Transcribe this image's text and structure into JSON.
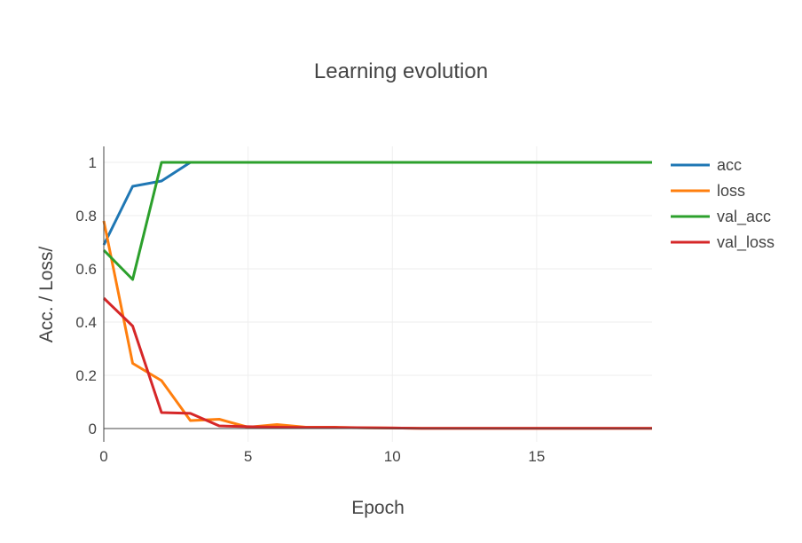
{
  "chart_data": {
    "type": "line",
    "title": "Learning evolution",
    "xlabel": "Epoch",
    "ylabel": "Acc. / Loss/",
    "xlim": [
      0,
      19
    ],
    "ylim": [
      -0.05,
      1.06
    ],
    "xticks": [
      0,
      5,
      10,
      15
    ],
    "yticks": [
      0,
      0.2,
      0.4,
      0.6,
      0.8,
      1
    ],
    "ytick_labels": [
      "0",
      "0.2",
      "0.4",
      "0.6",
      "0.8",
      "1"
    ],
    "xtick_labels": [
      "0",
      "5",
      "10",
      "15"
    ],
    "grid": true,
    "legend": "right",
    "x": [
      0,
      1,
      2,
      3,
      4,
      5,
      6,
      7,
      8,
      9,
      10,
      11,
      12,
      13,
      14,
      15,
      16,
      17,
      18,
      19
    ],
    "series": [
      {
        "name": "acc",
        "color": "#1f77b4",
        "values": [
          0.69,
          0.91,
          0.93,
          1,
          1,
          1,
          1,
          1,
          1,
          1,
          1,
          1,
          1,
          1,
          1,
          1,
          1,
          1,
          1,
          1
        ]
      },
      {
        "name": "loss",
        "color": "#ff7f0e",
        "values": [
          0.78,
          0.245,
          0.18,
          0.03,
          0.035,
          0.005,
          0.015,
          0.005,
          0.005,
          0.003,
          0.002,
          0.001,
          0.001,
          0.001,
          0.001,
          0.001,
          0.001,
          0.001,
          0.001,
          0.001
        ]
      },
      {
        "name": "val_acc",
        "color": "#2ca02c",
        "values": [
          0.67,
          0.56,
          1,
          1,
          1,
          1,
          1,
          1,
          1,
          1,
          1,
          1,
          1,
          1,
          1,
          1,
          1,
          1,
          1,
          1
        ]
      },
      {
        "name": "val_loss",
        "color": "#d62728",
        "values": [
          0.49,
          0.385,
          0.06,
          0.057,
          0.01,
          0.007,
          0.005,
          0.004,
          0.004,
          0.003,
          0.002,
          0.001,
          0.001,
          0.001,
          0.001,
          0.001,
          0.001,
          0.001,
          0.001,
          0.001
        ]
      }
    ]
  }
}
